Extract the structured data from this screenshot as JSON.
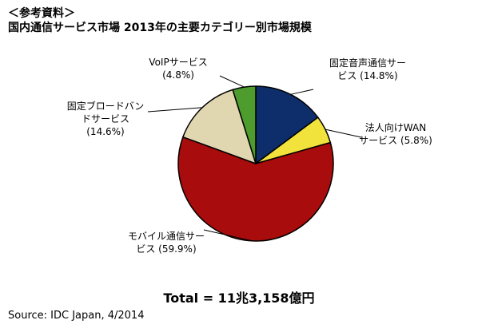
{
  "header": {
    "line1": "＜参考資料＞",
    "line2": "国内通信サービス市場 2013年の主要カテゴリー別市場規模"
  },
  "chart_data": {
    "type": "pie",
    "title": "国内通信サービス市場 2013年の主要カテゴリー別市場規模",
    "slices": [
      {
        "name": "固定音声通信サービス",
        "value": 14.8,
        "label_lines": [
          "固定音声通信サー",
          "ビス (14.8%)"
        ],
        "color": "#0d2d6b"
      },
      {
        "name": "法人向けWANサービス",
        "value": 5.8,
        "label_lines": [
          "法人向けWAN",
          "サービス (5.8%)"
        ],
        "color": "#f2e23c"
      },
      {
        "name": "モバイル通信サービス",
        "value": 59.9,
        "label_lines": [
          "モバイル通信サー",
          "ビス (59.9%)"
        ],
        "color": "#a80c0c"
      },
      {
        "name": "固定ブロードバンドサービス",
        "value": 14.6,
        "label_lines": [
          "固定ブロードバン",
          "ドサービス",
          "(14.6%)"
        ],
        "color": "#e0d7b0"
      },
      {
        "name": "VoIPサービス",
        "value": 4.8,
        "label_lines": [
          "VoIPサービス",
          "(4.8%)"
        ],
        "color": "#4e9c2e"
      }
    ]
  },
  "total": "Total = 11兆3,158億円",
  "source": "Source: IDC Japan, 4/2014"
}
